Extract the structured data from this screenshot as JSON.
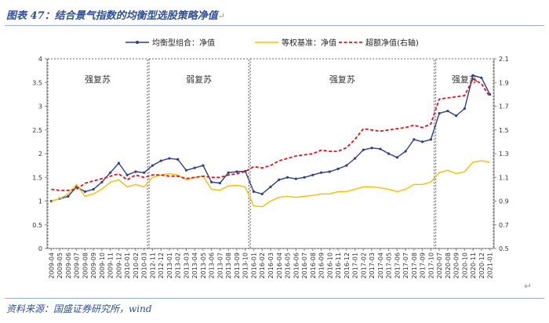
{
  "header": {
    "title": "图表 47：结合景气指数的均衡型选股策略净值"
  },
  "footer": {
    "source": "资料来源：国盛证券研究所，wind"
  },
  "chart_data": {
    "type": "line",
    "categories": [
      "2009-04",
      "2009-05",
      "2009-06",
      "2009-07",
      "2009-08",
      "2009-09",
      "2009-10",
      "2009-11",
      "2009-12",
      "2010-01",
      "2010-02",
      "2010-03",
      "2012-11",
      "2012-12",
      "2013-01",
      "2013-02",
      "2013-03",
      "2013-04",
      "2013-05",
      "2013-06",
      "2013-07",
      "2013-08",
      "2013-09",
      "2013-10",
      "2016-01",
      "2016-02",
      "2016-03",
      "2016-04",
      "2016-05",
      "2016-06",
      "2016-07",
      "2016-08",
      "2016-09",
      "2016-10",
      "2016-11",
      "2016-12",
      "2017-01",
      "2017-02",
      "2017-03",
      "2017-04",
      "2017-05",
      "2017-06",
      "2017-07",
      "2017-08",
      "2017-09",
      "2017-10",
      "2020-07",
      "2020-08",
      "2020-09",
      "2020-10",
      "2020-11",
      "2020-12",
      "2021-01"
    ],
    "x_tick_labels": [
      "2009-04",
      "2009-05",
      "2009-06",
      "2009-07",
      "2009-08",
      "2009-09",
      "2009-10",
      "2009-11",
      "2009-12",
      "2010-01",
      "2010-02",
      "2010-03",
      "2012-11",
      "2012-12",
      "2013-01",
      "2013-02",
      "2013-03",
      "2013-04",
      "2013-05",
      "2013-06",
      "2013-07",
      "2013-08",
      "2013-09",
      "2013-10",
      "2016-01",
      "2016-02",
      "2016-03",
      "2016-04",
      "2016-05",
      "2016-06",
      "2016-07",
      "2016-08",
      "2016-09",
      "2016-10",
      "2016-11",
      "2016-12",
      "2017-01",
      "2017-02",
      "2017-03",
      "2017-04",
      "2017-05",
      "2017-06",
      "2017-07",
      "2017-08",
      "2017-09",
      "2017-10",
      "2020-07",
      "2020-08",
      "2020-09",
      "2020-10",
      "2020-11",
      "2020-12",
      "2021-01"
    ],
    "ylim_left": [
      0,
      4
    ],
    "yticks_left": [
      "0",
      "0.5",
      "1",
      "1.5",
      "2",
      "2.5",
      "3",
      "3.5",
      "4"
    ],
    "ylim_right": [
      0.5,
      2.1
    ],
    "yticks_right": [
      "0.5",
      "0.7",
      "0.9",
      "1.1",
      "1.3",
      "1.5",
      "1.7",
      "1.9",
      "2.1"
    ],
    "series": [
      {
        "name": "均衡型组合：净值",
        "axis": "left",
        "color": "#2f3e8f",
        "marker": "circle",
        "values": [
          1.0,
          1.05,
          1.1,
          1.3,
          1.2,
          1.25,
          1.4,
          1.6,
          1.8,
          1.55,
          1.62,
          1.6,
          1.75,
          1.85,
          1.9,
          1.88,
          1.65,
          1.7,
          1.75,
          1.4,
          1.38,
          1.6,
          1.62,
          1.63,
          1.2,
          1.15,
          1.3,
          1.45,
          1.5,
          1.47,
          1.5,
          1.55,
          1.6,
          1.62,
          1.68,
          1.75,
          1.9,
          2.08,
          2.12,
          2.1,
          2.0,
          1.92,
          2.05,
          2.3,
          2.25,
          2.3,
          2.85,
          2.9,
          2.8,
          2.95,
          3.65,
          3.6,
          3.25
        ]
      },
      {
        "name": "等权基准：净值",
        "axis": "left",
        "color": "#f5c000",
        "values": [
          1.0,
          1.05,
          1.15,
          1.35,
          1.1,
          1.15,
          1.25,
          1.4,
          1.45,
          1.3,
          1.35,
          1.3,
          1.5,
          1.55,
          1.58,
          1.55,
          1.45,
          1.5,
          1.52,
          1.25,
          1.23,
          1.32,
          1.33,
          1.3,
          0.9,
          0.88,
          1.0,
          1.08,
          1.1,
          1.08,
          1.1,
          1.12,
          1.15,
          1.15,
          1.2,
          1.2,
          1.25,
          1.3,
          1.3,
          1.28,
          1.25,
          1.2,
          1.25,
          1.35,
          1.35,
          1.4,
          1.6,
          1.65,
          1.58,
          1.62,
          1.82,
          1.85,
          1.82
        ]
      },
      {
        "name": "超额净值(右轴)",
        "axis": "right",
        "color": "#e0141e",
        "dashed": true,
        "values": [
          1.0,
          0.99,
          0.99,
          1.0,
          1.05,
          1.07,
          1.09,
          1.11,
          1.13,
          1.08,
          1.12,
          1.1,
          1.12,
          1.12,
          1.11,
          1.11,
          1.09,
          1.1,
          1.11,
          1.1,
          1.1,
          1.12,
          1.13,
          1.15,
          1.19,
          1.18,
          1.2,
          1.24,
          1.26,
          1.28,
          1.29,
          1.3,
          1.33,
          1.32,
          1.32,
          1.35,
          1.42,
          1.51,
          1.5,
          1.49,
          1.5,
          1.51,
          1.52,
          1.54,
          1.52,
          1.55,
          1.76,
          1.77,
          1.78,
          1.79,
          1.93,
          1.89,
          1.78
        ]
      }
    ],
    "phases": [
      {
        "label": "强复苏",
        "start": 0,
        "end": 11
      },
      {
        "label": "弱复苏",
        "start": 12,
        "end": 23
      },
      {
        "label": "强复苏",
        "start": 24,
        "end": 45
      },
      {
        "label": "强复苏",
        "start": 46,
        "end": 52
      }
    ],
    "legend_position": "top",
    "grid": false
  }
}
